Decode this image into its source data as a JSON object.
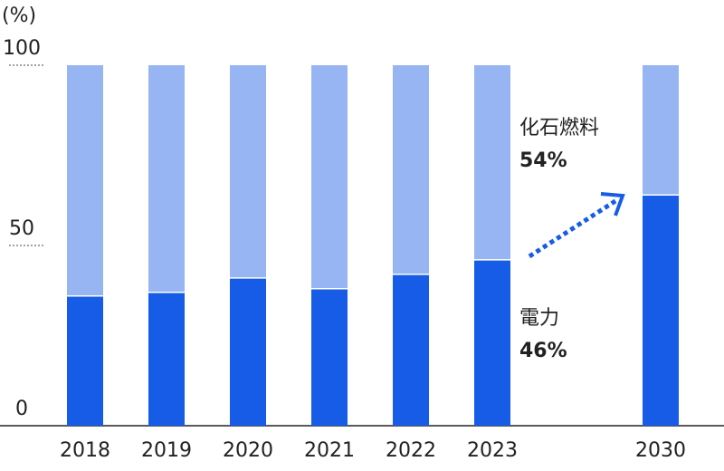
{
  "chart_data": {
    "type": "stacked-bar",
    "y_unit": "(%)",
    "categories": [
      "2018",
      "2019",
      "2020",
      "2021",
      "2022",
      "2023",
      "2030"
    ],
    "series": [
      {
        "name": "電力",
        "color": "#165ce6",
        "values": [
          36,
          37,
          41,
          38,
          42,
          46,
          64
        ],
        "value_labels": [
          null,
          null,
          null,
          null,
          null,
          "46%",
          null
        ]
      },
      {
        "name": "化石燃料",
        "color": "#97b5f2",
        "values": [
          64,
          63,
          59,
          62,
          58,
          54,
          36
        ],
        "value_labels": [
          null,
          null,
          null,
          null,
          null,
          "54%",
          null
        ]
      }
    ],
    "ylim": [
      0,
      100
    ],
    "yticks": [
      0,
      50,
      100
    ],
    "grid": true
  }
}
